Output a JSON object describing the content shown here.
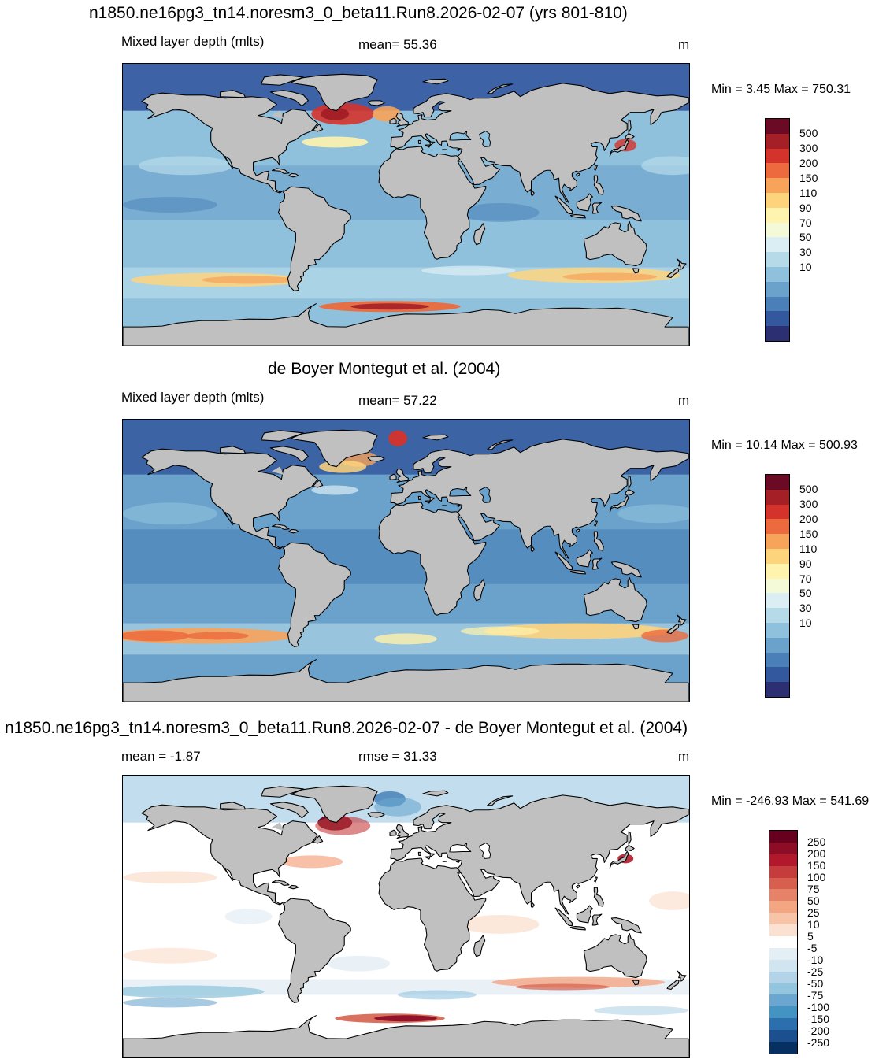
{
  "panels": [
    {
      "title": "n1850.ne16pg3_tn14.noresm3_0_beta11.Run8.2026-02-07 (yrs 801-810)",
      "left_label": "Mixed layer depth (mlts)",
      "center_label": "mean=  55.36",
      "units": "m",
      "minmax": "Min =   3.45 Max = 750.31",
      "colorbar": {
        "labels": [
          "500",
          "300",
          "200",
          "150",
          "110",
          "90",
          "70",
          "50",
          "30",
          "10"
        ],
        "colors": [
          "#6b0a24",
          "#a51f27",
          "#d4332c",
          "#ec6a3d",
          "#f8a35a",
          "#fdd37c",
          "#fff3ad",
          "#f4f9d8",
          "#dbeef3",
          "#b7dae9",
          "#8fc1dd",
          "#6aa2cb",
          "#4a7fb8",
          "#34589e",
          "#2c2f72"
        ]
      }
    },
    {
      "title": "de Boyer Montegut et al. (2004)",
      "left_label": "Mixed layer depth (mlts)",
      "center_label": "mean=  57.22",
      "units": "m",
      "minmax": "Min =  10.14 Max = 500.93",
      "colorbar": {
        "labels": [
          "500",
          "300",
          "200",
          "150",
          "110",
          "90",
          "70",
          "50",
          "30",
          "10"
        ],
        "colors": [
          "#6b0a24",
          "#a51f27",
          "#d4332c",
          "#ec6a3d",
          "#f8a35a",
          "#fdd37c",
          "#fff3ad",
          "#f4f9d8",
          "#dbeef3",
          "#b7dae9",
          "#8fc1dd",
          "#6aa2cb",
          "#4a7fb8",
          "#34589e",
          "#2c2f72"
        ]
      }
    },
    {
      "title": "n1850.ne16pg3_tn14.noresm3_0_beta11.Run8.2026-02-07 - de Boyer Montegut et al. (2004)",
      "left_label": "mean =  -1.87",
      "center_label": "rmse =  31.33",
      "units": "m",
      "minmax": "Min = -246.93 Max = 541.69",
      "colorbar": {
        "labels": [
          "250",
          "200",
          "150",
          "100",
          "75",
          "50",
          "25",
          "10",
          "5",
          "-5",
          "-10",
          "-25",
          "-50",
          "-75",
          "-100",
          "-150",
          "-200",
          "-250"
        ],
        "colors": [
          "#67001f",
          "#8e0d26",
          "#b2182b",
          "#c43c3c",
          "#d6604d",
          "#e58267",
          "#f4a582",
          "#f8c4a8",
          "#fbe1d2",
          "#ffffff",
          "#e3eef5",
          "#d1e5f0",
          "#b3d4e8",
          "#92c5de",
          "#6aa6cf",
          "#4393c3",
          "#2c6fae",
          "#1c4f8f",
          "#053061"
        ]
      }
    }
  ],
  "colors": {
    "land": "#c0c0c0",
    "coast": "#000000"
  }
}
